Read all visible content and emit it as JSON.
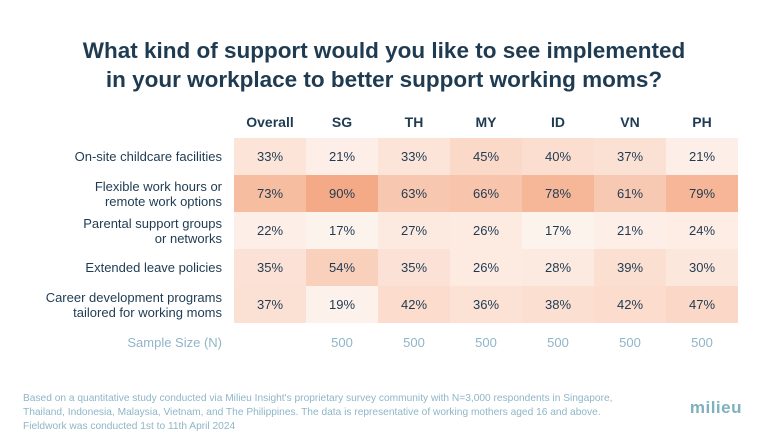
{
  "title_lines": [
    "What kind of support would you like to see implemented",
    "in your workplace to better support working moms?"
  ],
  "chart_data": {
    "type": "table",
    "title": "What kind of support would you like to see implemented in your workplace to better support working moms?",
    "columns": [
      "Overall",
      "SG",
      "TH",
      "MY",
      "ID",
      "VN",
      "PH"
    ],
    "rows": [
      {
        "label_lines": [
          "On-site childcare facilities"
        ],
        "values": [
          "33%",
          "21%",
          "33%",
          "45%",
          "40%",
          "37%",
          "21%"
        ]
      },
      {
        "label_lines": [
          "Flexible work hours or",
          "remote work options"
        ],
        "values": [
          "73%",
          "90%",
          "63%",
          "66%",
          "78%",
          "61%",
          "79%"
        ]
      },
      {
        "label_lines": [
          "Parental support groups",
          "or networks"
        ],
        "values": [
          "22%",
          "17%",
          "27%",
          "26%",
          "17%",
          "21%",
          "24%"
        ]
      },
      {
        "label_lines": [
          "Extended leave policies"
        ],
        "values": [
          "35%",
          "54%",
          "35%",
          "26%",
          "28%",
          "39%",
          "30%"
        ]
      },
      {
        "label_lines": [
          "Career development programs",
          "tailored for working moms"
        ],
        "values": [
          "37%",
          "19%",
          "42%",
          "36%",
          "38%",
          "42%",
          "47%"
        ]
      }
    ],
    "sample_size": {
      "label": "Sample Size (N)",
      "values": [
        "",
        "500",
        "500",
        "500",
        "500",
        "500",
        "500"
      ]
    }
  },
  "footnote_lines": [
    "Based on a quantitative study conducted via Milieu Insight's proprietary survey community with N=3,000 respondents in Singapore,",
    "Thailand, Indonesia, Malaysia, Vietnam, and The Philippines. The data is representative of working mothers aged 16 and above.",
    "Fieldwork was conducted 1st to 11th April 2024"
  ],
  "logo_text": "milieu",
  "colors": {
    "title": "#1f3b52",
    "muted": "#8fb6c6",
    "heat_low": "#ffffff",
    "heat_high": "#f4a57f"
  }
}
